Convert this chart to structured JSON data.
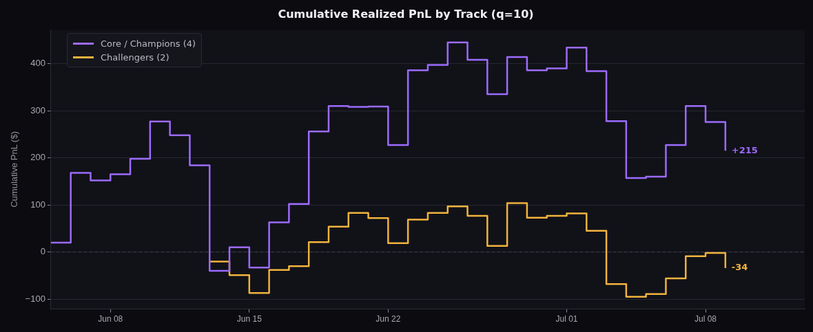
{
  "chart_data": {
    "type": "step",
    "title": "Cumulative Realized PnL by Track (q=10)",
    "ylabel": "Cumulative PnL ($)",
    "x": [
      "--06-05",
      "--06-06",
      "--06-07",
      "--06-08",
      "--06-09",
      "--06-10",
      "--06-11",
      "--06-12",
      "--06-13",
      "--06-14",
      "--06-15",
      "--06-16",
      "--06-17",
      "--06-18",
      "--06-19",
      "--06-20",
      "--06-21",
      "--06-22",
      "--06-23",
      "--06-24",
      "--06-25",
      "--06-26",
      "--06-27",
      "--06-28",
      "--06-29",
      "--06-30",
      "--07-01",
      "--07-02",
      "--07-03",
      "--07-04",
      "--07-05",
      "--07-06",
      "--07-07",
      "--07-08",
      "--07-09"
    ],
    "series": [
      {
        "name": "Core / Champions (4)",
        "color": "#9d6bff",
        "values": [
          20,
          168,
          152,
          165,
          198,
          277,
          248,
          184,
          -40,
          10,
          -33,
          63,
          102,
          256,
          310,
          308,
          309,
          227,
          386,
          397,
          445,
          408,
          335,
          414,
          386,
          390,
          434,
          384,
          278,
          157,
          160,
          227,
          310,
          276,
          215
        ]
      },
      {
        "name": "Challengers (2)",
        "color": "#f2b33d",
        "values": [
          null,
          null,
          null,
          null,
          null,
          null,
          null,
          null,
          -20,
          -49,
          -87,
          -38,
          -30,
          21,
          54,
          83,
          72,
          19,
          69,
          83,
          97,
          77,
          13,
          104,
          73,
          77,
          82,
          45,
          -68,
          -95,
          -89,
          -56,
          -9,
          -2,
          -34
        ]
      }
    ],
    "xlim": [
      "--06-05",
      "--07-13"
    ],
    "xticks": [
      {
        "value": "--06-08",
        "label": "Jun 08"
      },
      {
        "value": "--06-15",
        "label": "Jun 15"
      },
      {
        "value": "--06-22",
        "label": "Jun 22"
      },
      {
        "value": "--07-01",
        "label": "Jul 01"
      },
      {
        "value": "--07-08",
        "label": "Jul 08"
      }
    ],
    "ylim": [
      -121,
      472
    ],
    "yticks": [
      -100,
      0,
      100,
      200,
      300,
      400
    ],
    "grid": "y",
    "legend": "top left",
    "ref_lines": [
      {
        "axis": "y",
        "value": 0,
        "color": "#3a3b45",
        "line_style": "dashed"
      }
    ],
    "annotations": [
      {
        "text": "+215",
        "x": "--07-09",
        "y": 215
      },
      {
        "text": "-34",
        "x": "--07-09",
        "y": -34
      }
    ]
  }
}
